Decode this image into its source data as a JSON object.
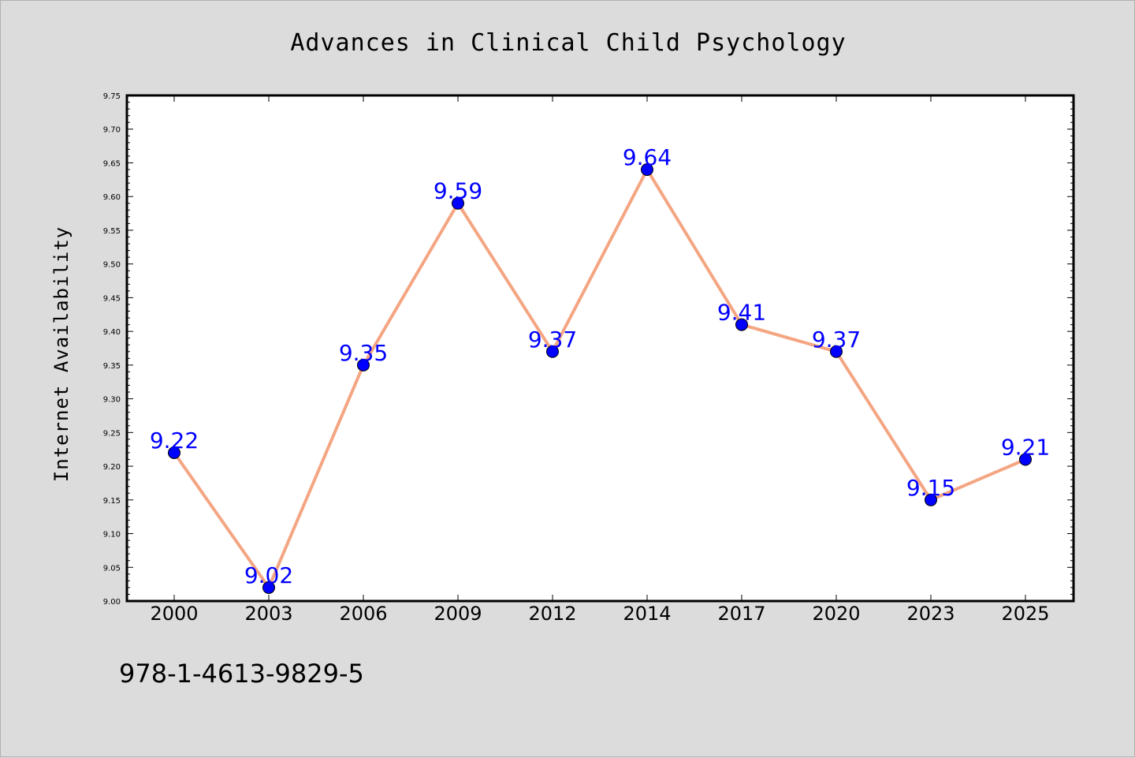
{
  "chart_data": {
    "type": "line",
    "title": "Advances in Clinical Child Psychology",
    "xlabel": "",
    "ylabel": "Internet Availability",
    "categories": [
      "2000",
      "2003",
      "2006",
      "2009",
      "2012",
      "2014",
      "2017",
      "2020",
      "2023",
      "2025"
    ],
    "series": [
      {
        "values": [
          9.22,
          9.02,
          9.35,
          9.59,
          9.37,
          9.64,
          9.41,
          9.37,
          9.15,
          9.21
        ],
        "labels": [
          "9.22",
          "9.02",
          "9.35",
          "9.59",
          "9.37",
          "9.64",
          "9.41",
          "9.37",
          "9.15",
          "9.21"
        ],
        "line_color": "#f4a582",
        "marker_color": "#0000ff",
        "label_color": "#0000ff"
      }
    ],
    "ylim": [
      9.0,
      9.75
    ],
    "yticks": [
      "9.00",
      "9.05",
      "9.10",
      "9.15",
      "9.20",
      "9.25",
      "9.30",
      "9.35",
      "9.40",
      "9.45",
      "9.50",
      "9.55",
      "9.60",
      "9.65",
      "9.70",
      "9.75"
    ],
    "grid": false,
    "legend": "none",
    "background_color": "#dcdcdc",
    "plot_background_color": "#ffffff",
    "footer_text": "978-1-4613-9829-5"
  }
}
